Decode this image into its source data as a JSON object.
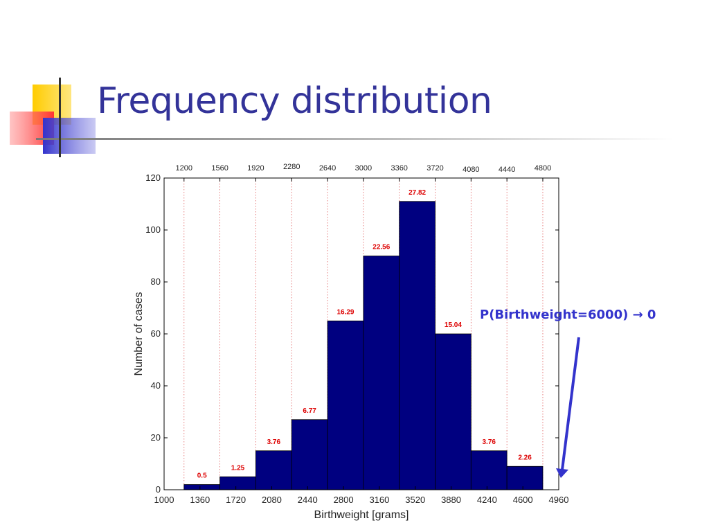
{
  "slide": {
    "title": "Frequency distribution",
    "annotation": "P(Birthweight=6000) → 0"
  },
  "colors": {
    "title": "#333399",
    "bar_fill": "#000080",
    "percent_label": "#dd0000",
    "boundary_line": "#e06060",
    "annotation": "#3333cc",
    "logo_yellow": "#ffcc00",
    "logo_red": "#ff3333",
    "logo_blue": "#3333cc"
  },
  "chart_data": {
    "type": "bar",
    "title": "",
    "xlabel": "Birthweight [grams]",
    "ylabel": "Number of cases",
    "xlim": [
      1000,
      4960
    ],
    "ylim": [
      0,
      120
    ],
    "y_ticks": [
      0,
      20,
      40,
      60,
      80,
      100,
      120
    ],
    "x_ticks": [
      1000,
      1360,
      1720,
      2080,
      2440,
      2800,
      3160,
      3520,
      3880,
      4240,
      4600,
      4960
    ],
    "top_ticks": [
      1200,
      1560,
      1920,
      2280,
      2640,
      3000,
      3360,
      3720,
      4080,
      4440,
      4800
    ],
    "bins": [
      {
        "x0": 1200,
        "x1": 1560,
        "count": 2,
        "percent": "0.5"
      },
      {
        "x0": 1560,
        "x1": 1920,
        "count": 5,
        "percent": "1.25"
      },
      {
        "x0": 1920,
        "x1": 2280,
        "count": 15,
        "percent": "3.76"
      },
      {
        "x0": 2280,
        "x1": 2640,
        "count": 27,
        "percent": "6.77"
      },
      {
        "x0": 2640,
        "x1": 3000,
        "count": 65,
        "percent": "16.29"
      },
      {
        "x0": 3000,
        "x1": 3360,
        "count": 90,
        "percent": "22.56"
      },
      {
        "x0": 3360,
        "x1": 3720,
        "count": 111,
        "percent": "27.82"
      },
      {
        "x0": 3720,
        "x1": 4080,
        "count": 60,
        "percent": "15.04"
      },
      {
        "x0": 4080,
        "x1": 4440,
        "count": 15,
        "percent": "3.76"
      },
      {
        "x0": 4440,
        "x1": 4800,
        "count": 9,
        "percent": "2.26"
      }
    ],
    "grid": false,
    "bin_boundary_lines": true
  }
}
